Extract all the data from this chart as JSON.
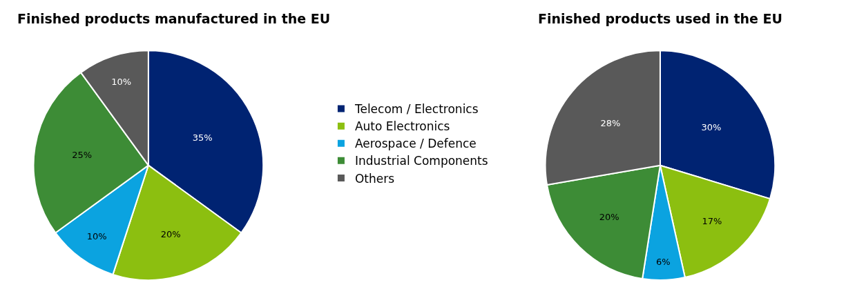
{
  "chart_data": [
    {
      "type": "pie",
      "title": "Finished products manufactured in the EU",
      "categories": [
        "Telecom / Electronics",
        "Auto Electronics",
        "Aerospace / Defence",
        "Industrial Components",
        "Others"
      ],
      "values": [
        35,
        20,
        10,
        25,
        10
      ],
      "value_labels": [
        "35%",
        "20%",
        "10%",
        "25%",
        "10%"
      ],
      "colors": [
        "#002372",
        "#8cbf10",
        "#0ba3e0",
        "#3d8c36",
        "#595959"
      ],
      "legend": "right"
    },
    {
      "type": "pie",
      "title": "Finished products used in the EU",
      "categories": [
        null,
        null,
        null,
        null,
        null
      ],
      "values": [
        30,
        17,
        6,
        20,
        28
      ],
      "value_labels": [
        "30%",
        "17%",
        "6%",
        "20%",
        "28%"
      ],
      "colors": [
        "#002372",
        "#8cbf10",
        "#0ba3e0",
        "#3d8c36",
        "#595959"
      ]
    }
  ]
}
